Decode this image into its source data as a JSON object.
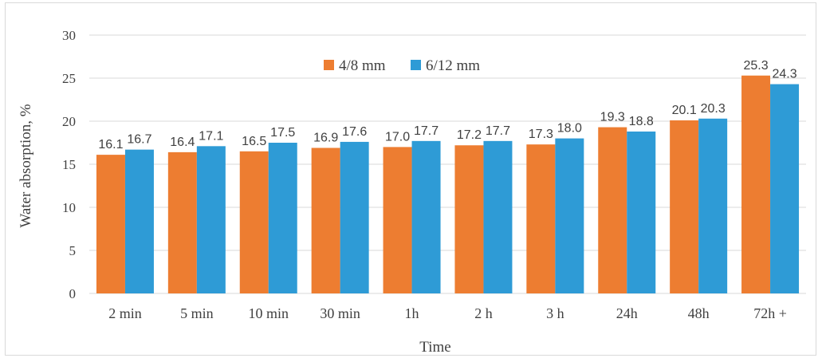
{
  "chart_data": {
    "type": "bar",
    "title": "",
    "xlabel": "Time",
    "ylabel": "Water absorption, %",
    "ylim": [
      0,
      30
    ],
    "yticks": [
      0,
      5,
      10,
      15,
      20,
      25,
      30
    ],
    "grid": true,
    "legend_position": "top-center",
    "categories": [
      "2 min",
      "5 min",
      "10 min",
      "30 min",
      "1h",
      "2 h",
      "3 h",
      "24h",
      "48h",
      "72h +"
    ],
    "series": [
      {
        "name": "4/8 mm",
        "color": "#ED7D31",
        "values": [
          16.1,
          16.4,
          16.5,
          16.9,
          17.0,
          17.2,
          17.3,
          19.3,
          20.1,
          25.3
        ],
        "labels": [
          "16.1",
          "16.4",
          "16.5",
          "16.9",
          "17.0",
          "17.2",
          "17.3",
          "19.3",
          "20.1",
          "25.3"
        ]
      },
      {
        "name": "6/12 mm",
        "color": "#2E9BD6",
        "values": [
          16.7,
          17.1,
          17.5,
          17.6,
          17.7,
          17.7,
          18.0,
          18.8,
          20.3,
          24.3
        ],
        "labels": [
          "16.7",
          "17.1",
          "17.5",
          "17.6",
          "17.7",
          "17.7",
          "18.0",
          "18.8",
          "20.3",
          "24.3"
        ]
      }
    ]
  }
}
